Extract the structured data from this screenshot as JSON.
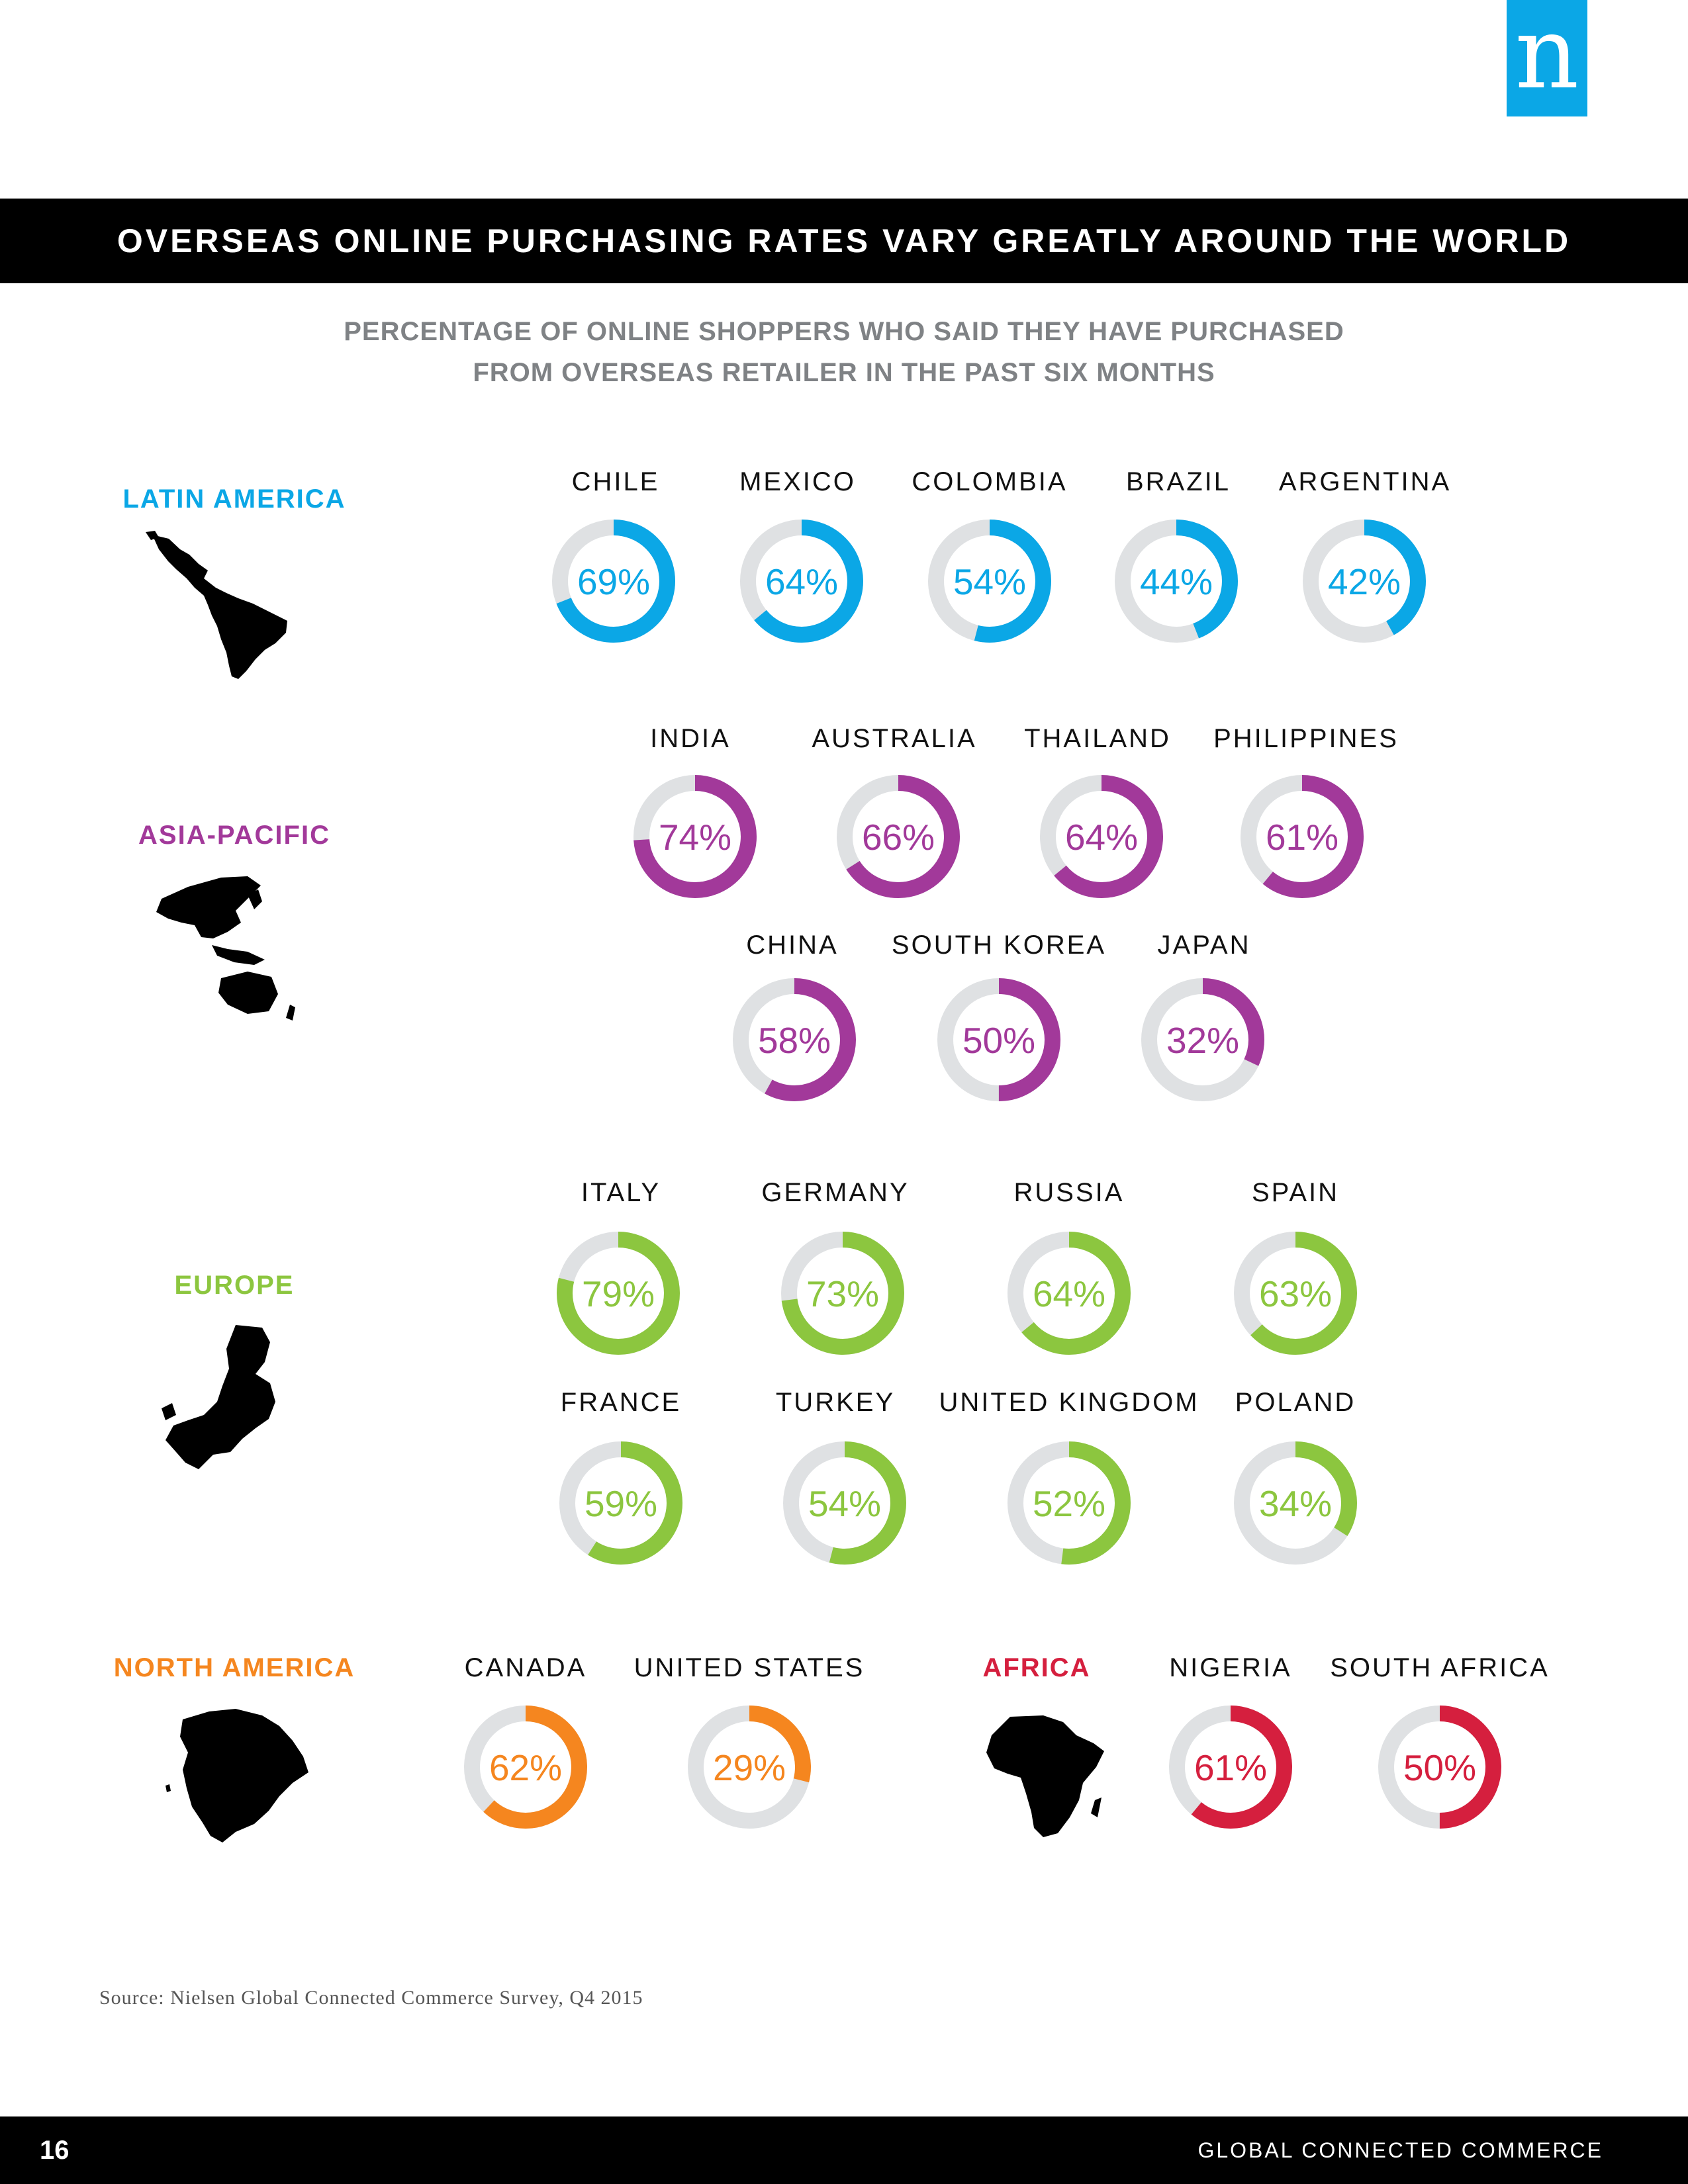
{
  "title": "OVERSEAS ONLINE PURCHASING RATES VARY GREATLY AROUND THE WORLD",
  "subtitle_line1": "PERCENTAGE OF ONLINE SHOPPERS WHO SAID THEY HAVE PURCHASED",
  "subtitle_line2": "FROM OVERSEAS RETAILER IN THE PAST SIX MONTHS",
  "logo_letter": "n",
  "source": "Source: Nielsen Global Connected Commerce Survey, Q4 2015",
  "footer": {
    "page_number": "16",
    "publication": "GLOBAL CONNECTED COMMERCE"
  },
  "colors": {
    "logo": "#0ba7e6",
    "track": "#dfe1e3"
  },
  "icons": {
    "latin-america": "latin-america-map-icon",
    "asia-pacific": "asia-pacific-map-icon",
    "europe": "europe-map-icon",
    "north-america": "north-america-map-icon",
    "africa": "africa-map-icon"
  },
  "chart_data": {
    "type": "donut",
    "unit": "%",
    "max": 100,
    "regions": [
      {
        "name": "LATIN AMERICA",
        "color": "#0ba7e6",
        "countries": [
          {
            "name": "CHILE",
            "value": 69,
            "label": "69%"
          },
          {
            "name": "MEXICO",
            "value": 64,
            "label": "64%"
          },
          {
            "name": "COLOMBIA",
            "value": 54,
            "label": "54%"
          },
          {
            "name": "BRAZIL",
            "value": 44,
            "label": "44%"
          },
          {
            "name": "ARGENTINA",
            "value": 42,
            "label": "42%"
          }
        ]
      },
      {
        "name": "ASIA-PACIFIC",
        "color": "#a2399a",
        "countries": [
          {
            "name": "INDIA",
            "value": 74,
            "label": "74%"
          },
          {
            "name": "AUSTRALIA",
            "value": 66,
            "label": "66%"
          },
          {
            "name": "THAILAND",
            "value": 64,
            "label": "64%"
          },
          {
            "name": "PHILIPPINES",
            "value": 61,
            "label": "61%"
          },
          {
            "name": "CHINA",
            "value": 58,
            "label": "58%"
          },
          {
            "name": "SOUTH KOREA",
            "value": 50,
            "label": "50%"
          },
          {
            "name": "JAPAN",
            "value": 32,
            "label": "32%"
          }
        ]
      },
      {
        "name": "EUROPE",
        "color": "#8cc63f",
        "countries": [
          {
            "name": "ITALY",
            "value": 79,
            "label": "79%"
          },
          {
            "name": "GERMANY",
            "value": 73,
            "label": "73%"
          },
          {
            "name": "RUSSIA",
            "value": 64,
            "label": "64%"
          },
          {
            "name": "SPAIN",
            "value": 63,
            "label": "63%"
          },
          {
            "name": "FRANCE",
            "value": 59,
            "label": "59%"
          },
          {
            "name": "TURKEY",
            "value": 54,
            "label": "54%"
          },
          {
            "name": "UNITED KINGDOM",
            "value": 52,
            "label": "52%"
          },
          {
            "name": "POLAND",
            "value": 34,
            "label": "34%"
          }
        ]
      },
      {
        "name": "NORTH AMERICA",
        "color": "#f5861f",
        "countries": [
          {
            "name": "CANADA",
            "value": 62,
            "label": "62%"
          },
          {
            "name": "UNITED STATES",
            "value": 29,
            "label": "29%"
          }
        ]
      },
      {
        "name": "AFRICA",
        "color": "#d51f3e",
        "countries": [
          {
            "name": "NIGERIA",
            "value": 61,
            "label": "61%"
          },
          {
            "name": "SOUTH AFRICA",
            "value": 50,
            "label": "50%"
          }
        ]
      }
    ]
  }
}
